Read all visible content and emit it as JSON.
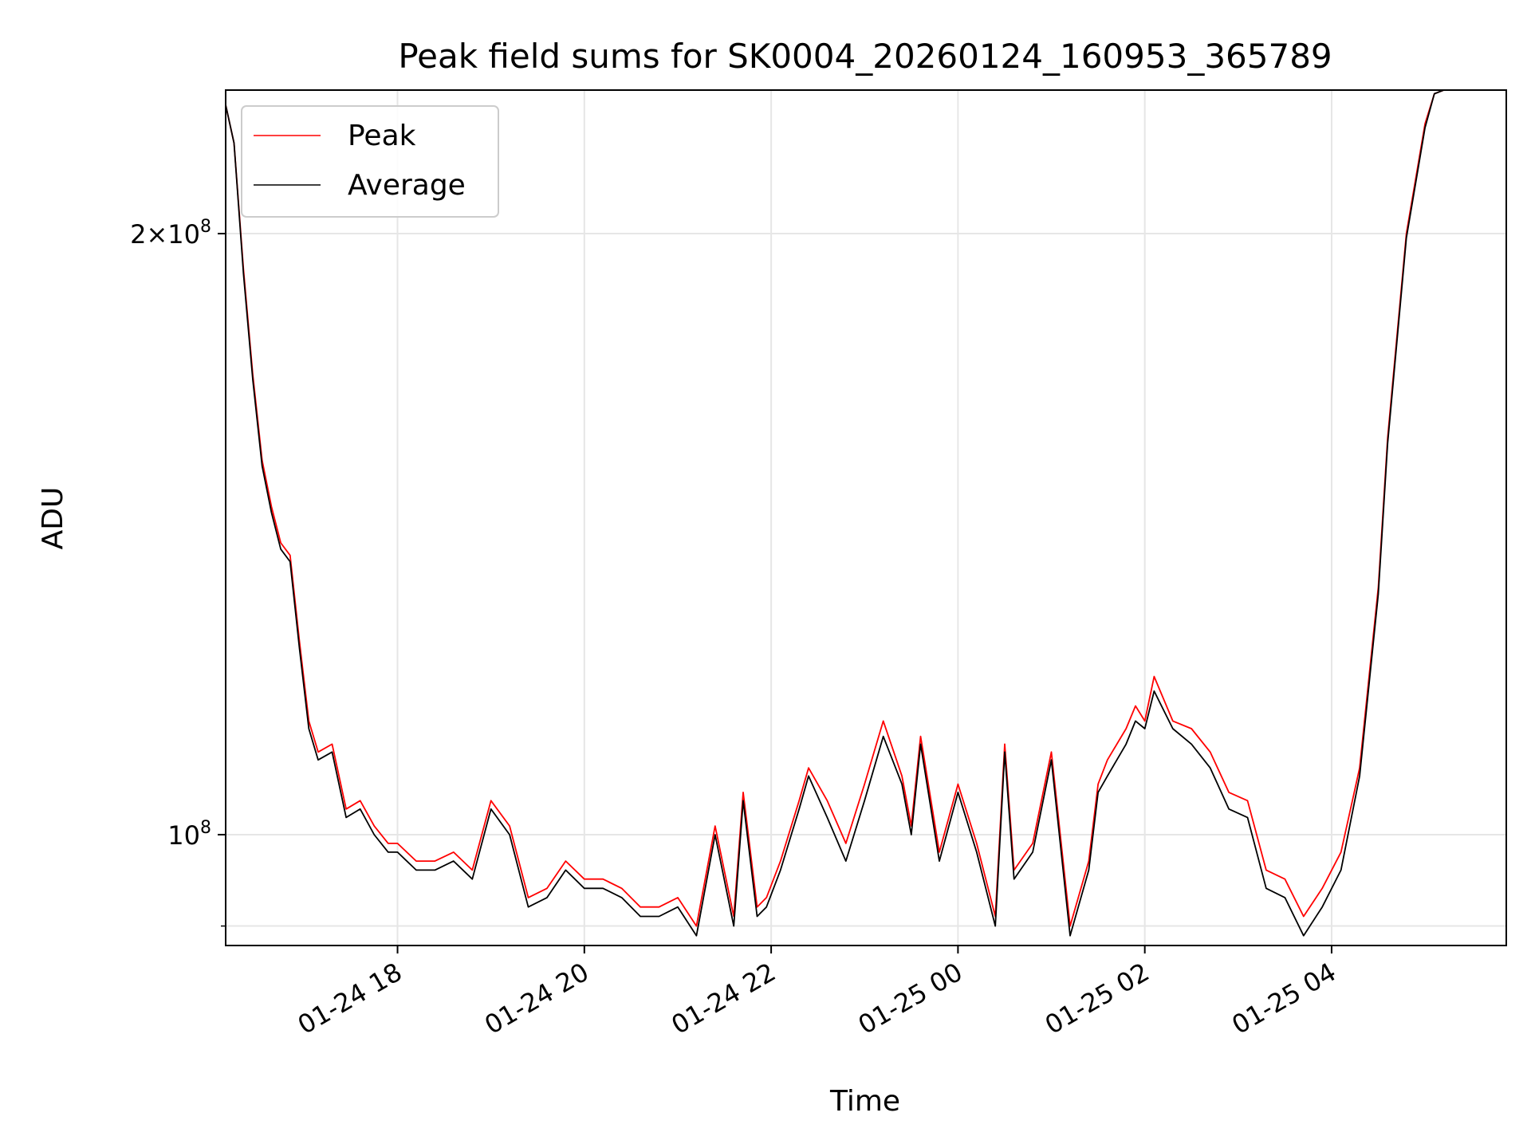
{
  "chart_data": {
    "type": "line",
    "title": "Peak field sums for SK0004_20260124_160953_365789",
    "xlabel": "Time",
    "ylabel": "ADU",
    "yscale": "log",
    "grid": true,
    "legend_position": "top-left",
    "x_tick_labels": [
      "01-24 18",
      "01-24 20",
      "01-24 22",
      "01-25 00",
      "01-25 02",
      "01-25 04"
    ],
    "x_ticks_hours": [
      18,
      20,
      22,
      24,
      26,
      28
    ],
    "xlim_hours": [
      16.16,
      29.87
    ],
    "ylim": [
      88000000,
      236000000
    ],
    "y_ticks": [
      {
        "value": 200000000,
        "mantissa": "2",
        "exponent": "8"
      },
      {
        "value": 100000000,
        "mantissa": "",
        "exponent": "8"
      }
    ],
    "y_minor_ticks": [
      90000000
    ],
    "series": [
      {
        "name": "Peak",
        "color": "#ff0000",
        "x_hours": [
          16.16,
          16.25,
          16.35,
          16.45,
          16.55,
          16.65,
          16.75,
          16.85,
          16.95,
          17.05,
          17.15,
          17.3,
          17.45,
          17.6,
          17.75,
          17.9,
          18.0,
          18.2,
          18.4,
          18.6,
          18.8,
          19.0,
          19.2,
          19.4,
          19.6,
          19.8,
          20.0,
          20.2,
          20.4,
          20.6,
          20.8,
          21.0,
          21.2,
          21.4,
          21.6,
          21.7,
          21.85,
          21.95,
          22.1,
          22.3,
          22.4,
          22.6,
          22.8,
          23.0,
          23.2,
          23.4,
          23.5,
          23.6,
          23.8,
          24.0,
          24.2,
          24.4,
          24.5,
          24.6,
          24.8,
          25.0,
          25.2,
          25.4,
          25.5,
          25.6,
          25.8,
          25.9,
          26.0,
          26.1,
          26.3,
          26.5,
          26.7,
          26.9,
          27.1,
          27.3,
          27.5,
          27.7,
          27.9,
          28.1,
          28.3,
          28.5,
          28.6,
          28.8,
          29.0,
          29.1,
          29.2,
          29.3,
          29.4,
          29.5,
          29.6,
          29.7,
          29.8,
          29.87
        ],
        "values": [
          232000000,
          222000000,
          192000000,
          170000000,
          154000000,
          146000000,
          140000000,
          138000000,
          125000000,
          114000000,
          110000000,
          111000000,
          103000000,
          104000000,
          101000000,
          99000000,
          99000000,
          97000000,
          97000000,
          98000000,
          96000000,
          104000000,
          101000000,
          93000000,
          94000000,
          97000000,
          95000000,
          95000000,
          94000000,
          92000000,
          92000000,
          93000000,
          90000000,
          101000000,
          91000000,
          105000000,
          92000000,
          93000000,
          97000000,
          104000000,
          108000000,
          104000000,
          99000000,
          106000000,
          114000000,
          107000000,
          101000000,
          112000000,
          98000000,
          106000000,
          99000000,
          91000000,
          111000000,
          96000000,
          99000000,
          110000000,
          90000000,
          97000000,
          106000000,
          109000000,
          113000000,
          116000000,
          114000000,
          120000000,
          114000000,
          113000000,
          110000000,
          105000000,
          104000000,
          96000000,
          95000000,
          91000000,
          94000000,
          98000000,
          108000000,
          133000000,
          158000000,
          200000000,
          227000000,
          235000000,
          236000000,
          236000000,
          236000000,
          236000000,
          236000000,
          236000000,
          236000000,
          236000000
        ]
      },
      {
        "name": "Average",
        "color": "#000000",
        "x_hours": [
          16.16,
          16.25,
          16.35,
          16.45,
          16.55,
          16.65,
          16.75,
          16.85,
          16.95,
          17.05,
          17.15,
          17.3,
          17.45,
          17.6,
          17.75,
          17.9,
          18.0,
          18.2,
          18.4,
          18.6,
          18.8,
          19.0,
          19.2,
          19.4,
          19.6,
          19.8,
          20.0,
          20.2,
          20.4,
          20.6,
          20.8,
          21.0,
          21.2,
          21.4,
          21.6,
          21.7,
          21.85,
          21.95,
          22.1,
          22.3,
          22.4,
          22.6,
          22.8,
          23.0,
          23.2,
          23.4,
          23.5,
          23.6,
          23.8,
          24.0,
          24.2,
          24.4,
          24.5,
          24.6,
          24.8,
          25.0,
          25.2,
          25.4,
          25.5,
          25.6,
          25.8,
          25.9,
          26.0,
          26.1,
          26.3,
          26.5,
          26.7,
          26.9,
          27.1,
          27.3,
          27.5,
          27.7,
          27.9,
          28.1,
          28.3,
          28.5,
          28.6,
          28.8,
          29.0,
          29.1,
          29.2,
          29.3,
          29.4,
          29.5,
          29.6,
          29.7,
          29.8,
          29.87
        ],
        "values": [
          232000000,
          222000000,
          191000000,
          169000000,
          153000000,
          145000000,
          139000000,
          137000000,
          124000000,
          113000000,
          109000000,
          110000000,
          102000000,
          103000000,
          100000000,
          98000000,
          98000000,
          96000000,
          96000000,
          97000000,
          95000000,
          103000000,
          100000000,
          92000000,
          93000000,
          96000000,
          94000000,
          94000000,
          93000000,
          91000000,
          91000000,
          92000000,
          89000000,
          100000000,
          90000000,
          104000000,
          91000000,
          92000000,
          96000000,
          103000000,
          107000000,
          102000000,
          97000000,
          104000000,
          112000000,
          106000000,
          100000000,
          111000000,
          97000000,
          105000000,
          98000000,
          90000000,
          110000000,
          95000000,
          98000000,
          109000000,
          89000000,
          96000000,
          105000000,
          107000000,
          111000000,
          114000000,
          113000000,
          118000000,
          113000000,
          111000000,
          108000000,
          103000000,
          102000000,
          94000000,
          93000000,
          89000000,
          92000000,
          96000000,
          107000000,
          132000000,
          157000000,
          199000000,
          226000000,
          235000000,
          236000000,
          236000000,
          236000000,
          236000000,
          236000000,
          236000000,
          236000000,
          236000000
        ]
      }
    ]
  }
}
